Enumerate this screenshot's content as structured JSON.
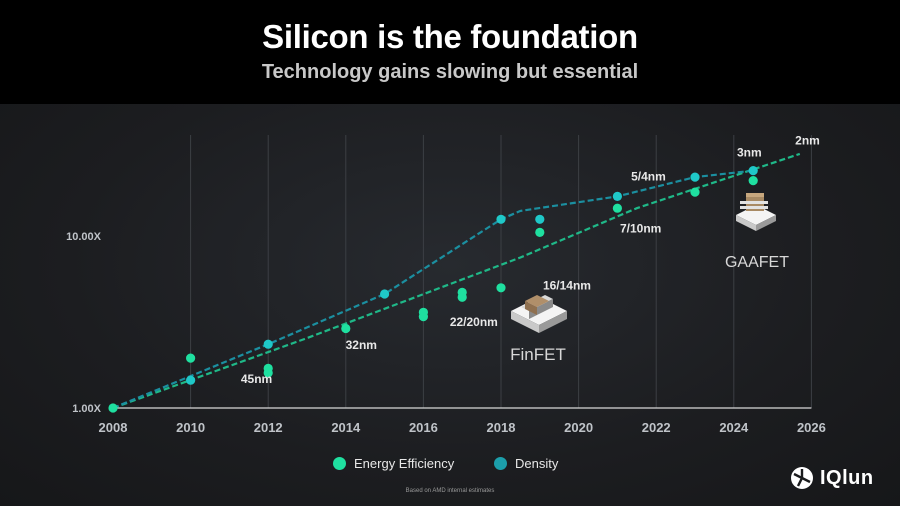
{
  "header": {
    "title": "Silicon is the foundation",
    "subtitle": "Technology gains slowing but essential"
  },
  "chart_data": {
    "type": "scatter",
    "title": "Silicon is the foundation",
    "subtitle": "Technology gains slowing but essential",
    "xlabel": "",
    "ylabel": "",
    "xlim": [
      2008,
      2026
    ],
    "y_scale": "log",
    "ylim": [
      1,
      40
    ],
    "x_ticks": [
      "2008",
      "2010",
      "2012",
      "2014",
      "2016",
      "2018",
      "2020",
      "2022",
      "2024",
      "2026"
    ],
    "y_ticks": [
      {
        "value": 1,
        "label": "1.00X"
      },
      {
        "value": 10,
        "label": "10.00X"
      }
    ],
    "grid": "vertical",
    "legend": "bottom-center",
    "series": [
      {
        "name": "Energy Efficiency",
        "color": "#1fe0a0",
        "points": [
          [
            2008,
            1.0
          ],
          [
            2010,
            1.95
          ],
          [
            2012,
            1.7
          ],
          [
            2012,
            1.6
          ],
          [
            2014,
            2.9
          ],
          [
            2016,
            3.6
          ],
          [
            2016,
            3.4
          ],
          [
            2017,
            4.7
          ],
          [
            2017,
            4.4
          ],
          [
            2018,
            5.0
          ],
          [
            2019,
            10.5
          ],
          [
            2021,
            14.5
          ],
          [
            2023,
            18.0
          ],
          [
            2024.5,
            21.0
          ]
        ],
        "trend": [
          [
            2008,
            1.0
          ],
          [
            2013,
            2.55
          ],
          [
            2018.5,
            7.5
          ],
          [
            2021.5,
            14.5
          ],
          [
            2025.7,
            30.0
          ]
        ]
      },
      {
        "name": "Density",
        "color": "#1fc8c8",
        "points": [
          [
            2010,
            1.45
          ],
          [
            2012,
            2.35
          ],
          [
            2015,
            4.6
          ],
          [
            2018,
            12.5
          ],
          [
            2019,
            12.5
          ],
          [
            2021,
            17.0
          ],
          [
            2023,
            22.0
          ],
          [
            2024.5,
            24.0
          ]
        ],
        "trend": [
          [
            2008,
            1.0
          ],
          [
            2012,
            2.35
          ],
          [
            2015,
            4.6
          ],
          [
            2018,
            12.5
          ],
          [
            2018.5,
            14.0
          ],
          [
            2021,
            17.0
          ],
          [
            2023,
            22.0
          ],
          [
            2024.5,
            24.0
          ]
        ]
      }
    ],
    "annotations": [
      "45nm",
      "32nm",
      "22/20nm",
      "16/14nm",
      "7/10nm",
      "5/4nm",
      "3nm",
      "2nm",
      "FinFET",
      "GAAFET"
    ],
    "footnote": "Based on AMD internal estimates"
  },
  "legend_items": [
    "Energy Efficiency",
    "Density"
  ],
  "brand": "IQlun",
  "colors": {
    "energy": "#1fe0a0",
    "density": "#1fc8c8",
    "grid": "#3c3f44",
    "axis": "#bfc3c8"
  }
}
